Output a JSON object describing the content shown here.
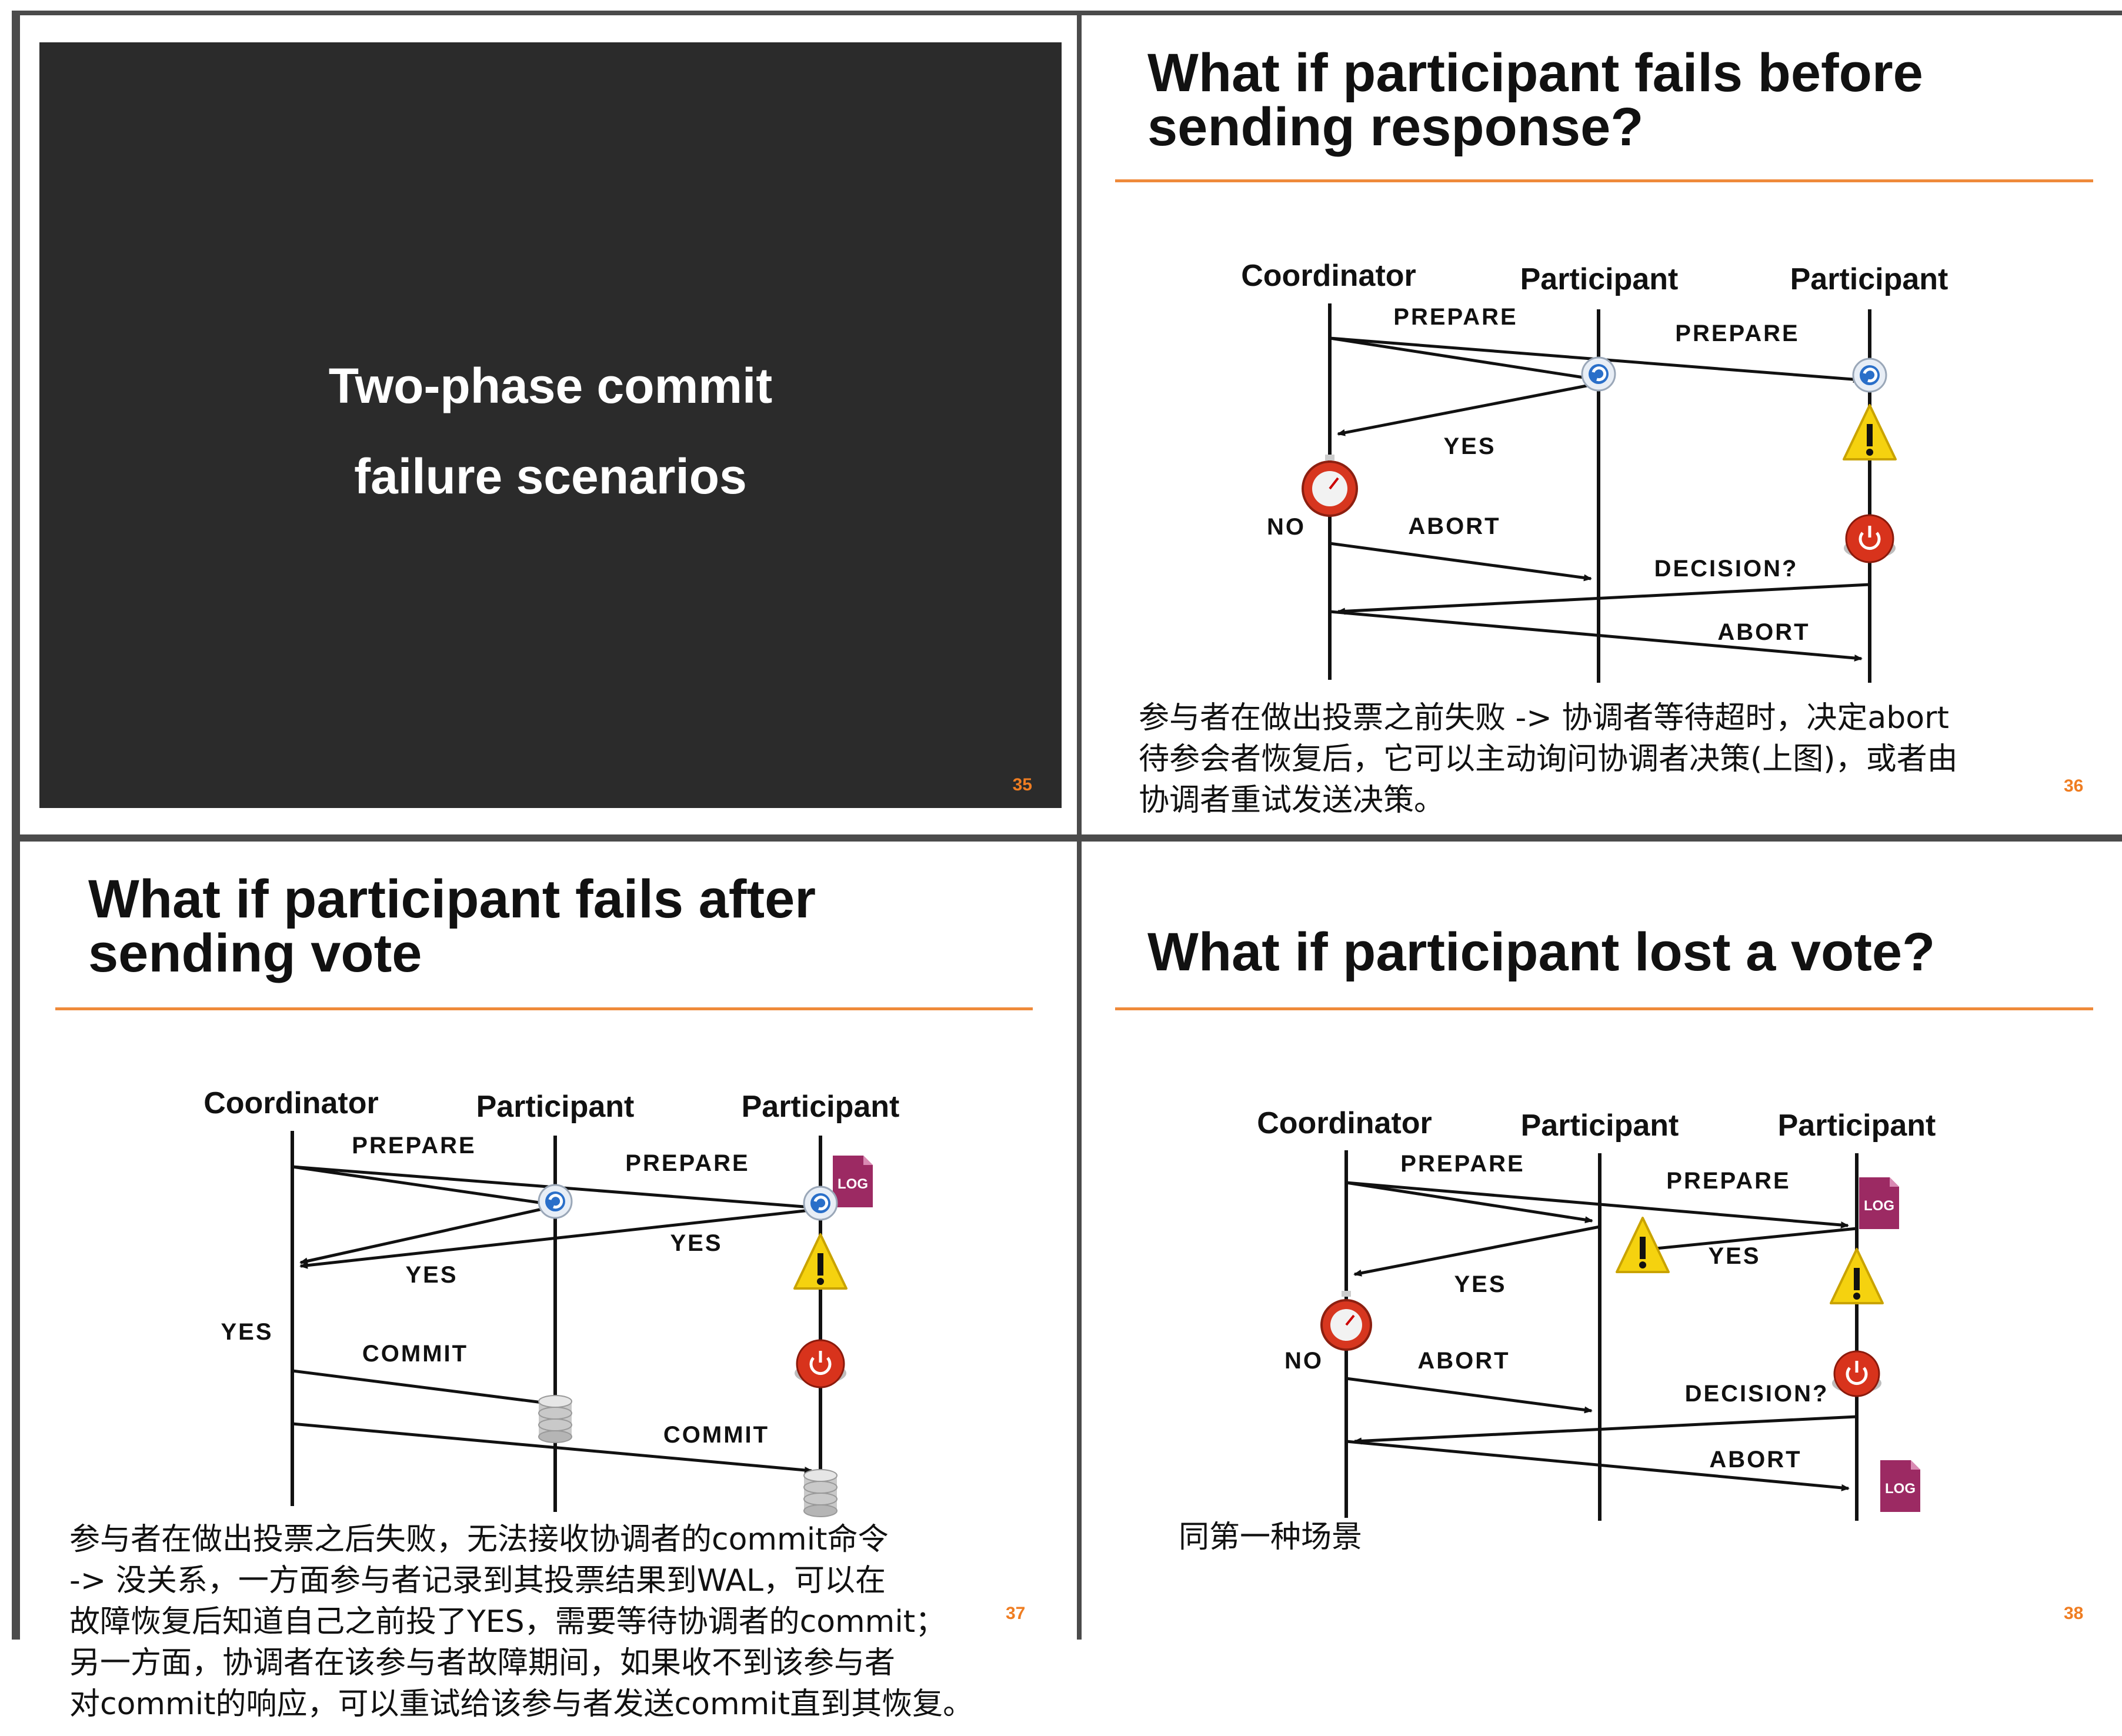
{
  "slides": {
    "s35": {
      "title_lines": [
        "Two-phase commit",
        "failure scenarios"
      ],
      "number": "35"
    },
    "s36": {
      "title_lines": [
        "What if participant fails before",
        "sending response?"
      ],
      "number": "36",
      "diagram": {
        "coordinator": "Coordinator",
        "participant1": "Participant",
        "participant2": "Participant",
        "prepare1": "PREPARE",
        "prepare2": "PREPARE",
        "yes": "YES",
        "no": "NO",
        "abort1": "ABORT",
        "decision": "DECISION?",
        "abort2": "ABORT"
      },
      "note_lines": [
        "参与者在做出投票之前失败 -> 协调者等待超时，决定abort",
        "待参会者恢复后，它可以主动询问协调者决策(上图)，或者由",
        "协调者重试发送决策。"
      ]
    },
    "s37": {
      "title_lines": [
        "What if participant fails after",
        "sending vote"
      ],
      "number": "37",
      "diagram": {
        "coordinator": "Coordinator",
        "participant1": "Participant",
        "participant2": "Participant",
        "prepare1": "PREPARE",
        "prepare2": "PREPARE",
        "yes1": "YES",
        "yes2": "YES",
        "yes_decision": "YES",
        "commit1": "COMMIT",
        "commit2": "COMMIT",
        "log_badge": "LOG"
      },
      "note_lines": [
        "参与者在做出投票之后失败，无法接收协调者的commit命令",
        "-> 没关系，一方面参与者记录到其投票结果到WAL，可以在",
        "故障恢复后知道自己之前投了YES，需要等待协调者的commit；",
        "另一方面，协调者在该参与者故障期间，如果收不到该参与者",
        "对commit的响应，可以重试给该参与者发送commit直到其恢复。"
      ]
    },
    "s38": {
      "title_lines": [
        "What if participant lost a vote?"
      ],
      "number": "38",
      "diagram": {
        "coordinator": "Coordinator",
        "participant1": "Participant",
        "participant2": "Participant",
        "prepare1": "PREPARE",
        "prepare2": "PREPARE",
        "yes1": "YES",
        "yes2": "YES",
        "no": "NO",
        "abort1": "ABORT",
        "decision": "DECISION?",
        "abort2": "ABORT",
        "log_badge1": "LOG",
        "log_badge2": "LOG"
      },
      "note_lines": [
        "同第一种场景"
      ]
    }
  },
  "colors": {
    "dark_panel": "#2b2b2b",
    "accent": "#ef7d22",
    "rule": "#ef8a3a",
    "divider": "#4b4b4b"
  },
  "icons": [
    "timer-icon",
    "warning-icon",
    "power-button-icon",
    "sync-icon",
    "database-icon",
    "log-file-icon"
  ]
}
